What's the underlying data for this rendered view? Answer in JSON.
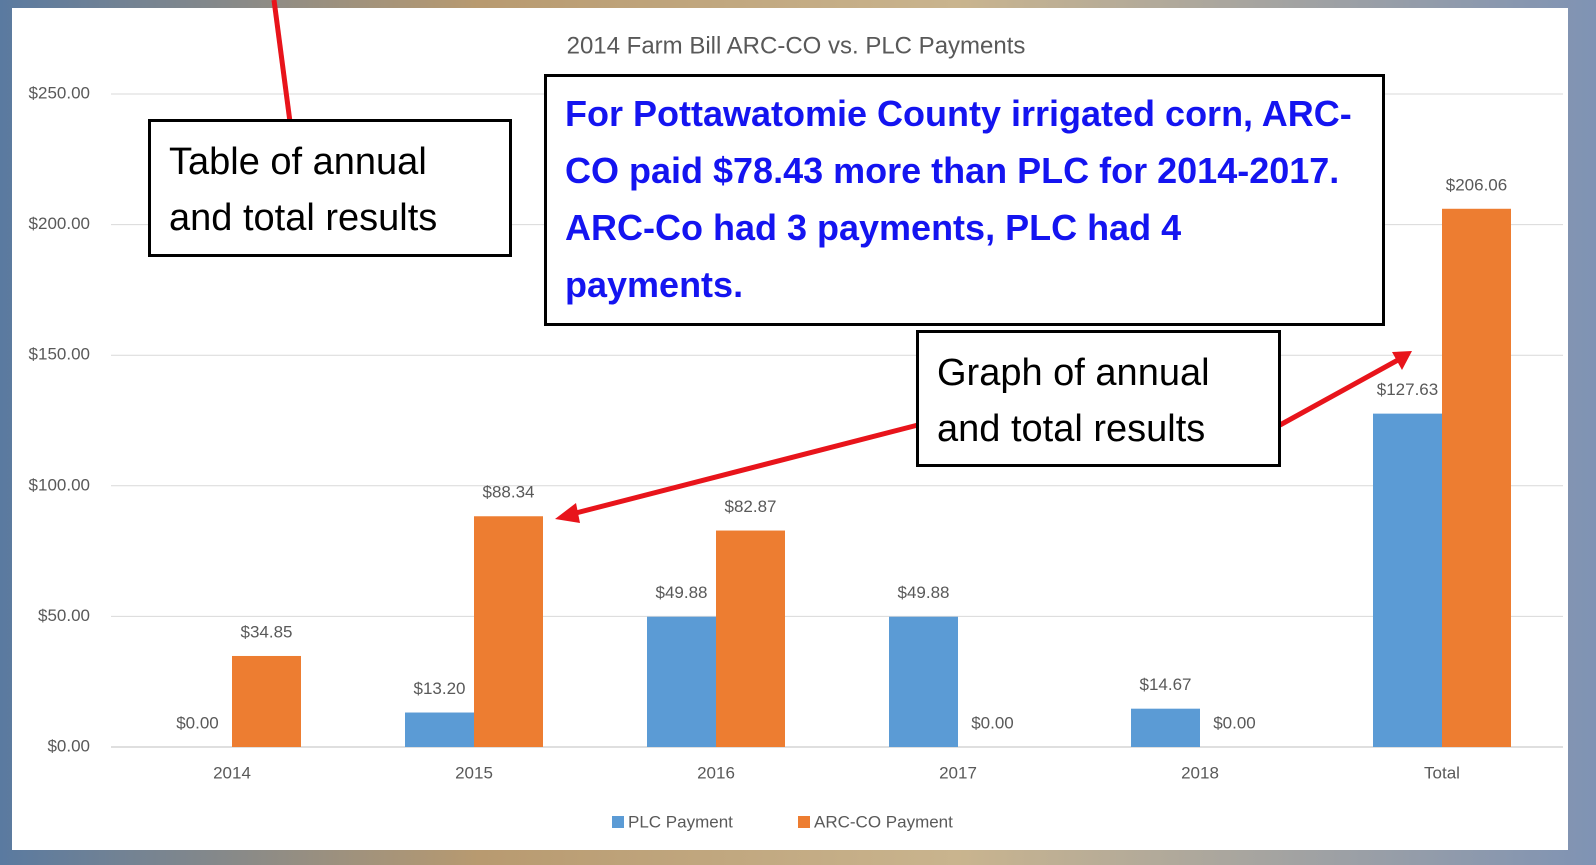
{
  "chart_data": {
    "type": "bar",
    "title": "2014 Farm Bill ARC-CO vs. PLC Payments",
    "categories": [
      "2014",
      "2015",
      "2016",
      "2017",
      "2018",
      "Total"
    ],
    "series": [
      {
        "name": "PLC Payment",
        "color": "#5b9bd5",
        "values": [
          0,
          13.2,
          49.88,
          49.88,
          14.67,
          127.63
        ],
        "value_labels": [
          "$0.00",
          "$13.20",
          "$49.88",
          "$49.88",
          "$14.67",
          "$127.63"
        ]
      },
      {
        "name": "ARC-CO Payment",
        "color": "#ed7d31",
        "values": [
          34.85,
          88.34,
          82.87,
          0,
          0,
          206.06
        ],
        "value_labels": [
          "$34.85",
          "$88.34",
          "$82.87",
          "$0.00",
          "$0.00",
          "$206.06"
        ]
      }
    ],
    "ylim": [
      0,
      250
    ],
    "yticks": [
      {
        "value": 0,
        "label": "$0.00"
      },
      {
        "value": 50,
        "label": "$50.00"
      },
      {
        "value": 100,
        "label": "$100.00"
      },
      {
        "value": 150,
        "label": "$150.00"
      },
      {
        "value": 200,
        "label": "$200.00"
      },
      {
        "value": 250,
        "label": "$250.00"
      }
    ],
    "grid": true,
    "legend": "bottom",
    "annotations": [
      "Table of annual and total results",
      "For Pottawatomie County irrigated corn, ARC-CO paid $78.43 more than PLC for 2014-2017. ARC-Co had 3 payments, PLC had 4 payments.",
      "Graph of annual and total results"
    ]
  }
}
